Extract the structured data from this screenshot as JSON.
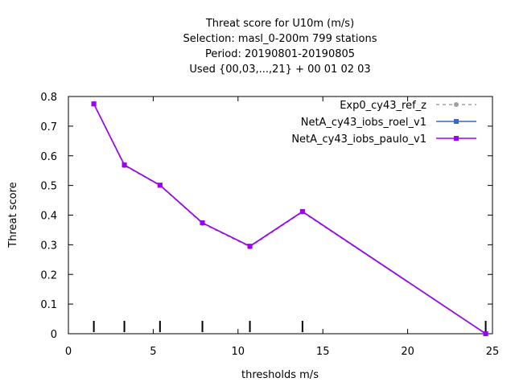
{
  "chart_data": {
    "type": "line",
    "title_lines": [
      "Threat score  for U10m (m/s)",
      "Selection: masl_0-200m    799 stations",
      "Period: 20190801-20190805",
      "Used {00,03,...,21} + 00 01 02 03"
    ],
    "xlabel": "thresholds m/s",
    "ylabel": "Threat score",
    "xlim": [
      0,
      25
    ],
    "ylim": [
      0,
      0.8
    ],
    "xticks": [
      0,
      5,
      10,
      15,
      20,
      25
    ],
    "yticks": [
      0,
      0.1,
      0.2,
      0.3,
      0.4,
      0.5,
      0.6,
      0.7,
      0.8
    ],
    "grid": false,
    "legend_position": "top-right",
    "threshold_markers": [
      1.5,
      3.3,
      5.4,
      7.9,
      10.7,
      13.8,
      24.6
    ],
    "series": [
      {
        "name": "Exp0_cy43_ref_z",
        "color": "#a0a0a0",
        "style": "dashed",
        "marker": "circle",
        "x": [
          1.5,
          3.3,
          5.4,
          7.9,
          10.7,
          13.8,
          24.6
        ],
        "y": [
          0.775,
          0.567,
          0.5,
          0.372,
          0.293,
          0.41,
          0.0
        ]
      },
      {
        "name": "NetA_cy43_iobs_roel_v1",
        "color": "#3a66c8",
        "style": "solid",
        "marker": "square",
        "x": [
          1.5,
          3.3,
          5.4,
          7.9,
          10.7,
          13.8,
          24.6
        ],
        "y": [
          0.775,
          0.569,
          0.501,
          0.374,
          0.295,
          0.412,
          0.0
        ]
      },
      {
        "name": "NetA_cy43_iobs_paulo_v1",
        "color": "#a000f0",
        "style": "solid",
        "marker": "square",
        "x": [
          1.5,
          3.3,
          5.4,
          7.9,
          10.7,
          13.8,
          24.6
        ],
        "y": [
          0.775,
          0.569,
          0.501,
          0.374,
          0.295,
          0.412,
          0.0
        ]
      }
    ]
  }
}
